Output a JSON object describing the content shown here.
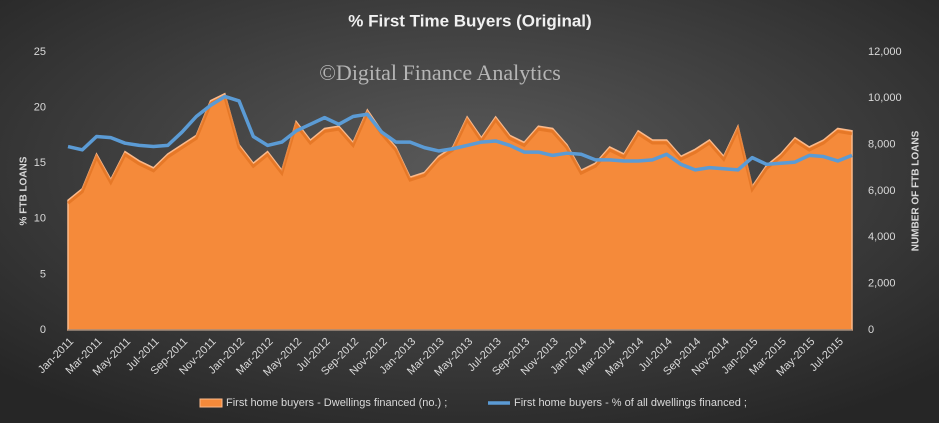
{
  "chart_data": {
    "type": "area-line",
    "title": "% First Time Buyers (Original)",
    "annotation": "©Digital Finance Analytics",
    "y_label": "% FTB LOANS",
    "y2_label": "NUMBER OF FTB LOANS",
    "categories": [
      "Jan-2011",
      null,
      "Mar-2011",
      null,
      "May-2011",
      null,
      "Jul-2011",
      null,
      "Sep-2011",
      null,
      "Nov-2011",
      null,
      "Jan-2012",
      null,
      "Mar-2012",
      null,
      "May-2012",
      null,
      "Jul-2012",
      null,
      "Sep-2012",
      null,
      "Nov-2012",
      null,
      "Jan-2013",
      null,
      "Mar-2013",
      null,
      "May-2013",
      null,
      "Jul-2013",
      null,
      "Sep-2013",
      null,
      "Nov-2013",
      null,
      "Jan-2014",
      null,
      "Mar-2014",
      null,
      "May-2014",
      null,
      "Jul-2014",
      null,
      "Sep-2014",
      null,
      "Nov-2014",
      null,
      "Jan-2015",
      null,
      "Mar-2015",
      null,
      "May-2015",
      null,
      "Jul-2015",
      null
    ],
    "series": [
      {
        "name": "First home buyers - Dwellings financed (no.) ;",
        "type": "area",
        "axis": "y2",
        "color": "#f58a3a",
        "values": [
          5600,
          6100,
          7600,
          6500,
          7700,
          7300,
          7000,
          7600,
          8000,
          8400,
          9900,
          10200,
          8000,
          7200,
          7700,
          6900,
          9000,
          8200,
          8700,
          8800,
          8100,
          9500,
          8600,
          7900,
          6600,
          6800,
          7500,
          7900,
          9200,
          8300,
          9200,
          8400,
          8100,
          8800,
          8700,
          8000,
          6900,
          7200,
          7900,
          7600,
          8600,
          8200,
          8200,
          7500,
          7800,
          8200,
          7500,
          8800,
          6200,
          7100,
          7600,
          8300,
          7900,
          8200,
          8700,
          8600
        ]
      },
      {
        "name": "First home buyers - % of all dwellings financed ;",
        "type": "line",
        "axis": "y",
        "color": "#5b9bd5",
        "values": [
          16.5,
          16.2,
          17.4,
          17.3,
          16.8,
          16.6,
          16.5,
          16.6,
          17.8,
          19.2,
          20.2,
          21.0,
          20.6,
          17.4,
          16.6,
          16.9,
          17.9,
          18.5,
          19.1,
          18.5,
          19.2,
          19.4,
          17.8,
          16.9,
          16.9,
          16.4,
          16.1,
          16.3,
          16.6,
          16.9,
          17.0,
          16.6,
          16.0,
          16.0,
          15.7,
          15.9,
          15.8,
          15.3,
          15.3,
          15.2,
          15.2,
          15.3,
          15.8,
          14.9,
          14.4,
          14.6,
          14.5,
          14.4,
          15.5,
          14.9,
          15.0,
          15.1,
          15.7,
          15.6,
          15.2,
          15.7
        ]
      }
    ],
    "ylim": [
      0,
      25
    ],
    "yticks": [
      0,
      5,
      10,
      15,
      20,
      25
    ],
    "y2lim": [
      0,
      12000
    ],
    "y2ticks": [
      0,
      {
        "value": 2000,
        "label": "2,000"
      },
      {
        "value": 4000,
        "label": "4,000"
      },
      {
        "value": 6000,
        "label": "6,000"
      },
      {
        "value": 8000,
        "label": "8,000"
      },
      {
        "value": 10000,
        "label": "10,000"
      },
      {
        "value": 12000,
        "label": "12,000"
      }
    ],
    "grid": false,
    "legend": "bottom"
  }
}
